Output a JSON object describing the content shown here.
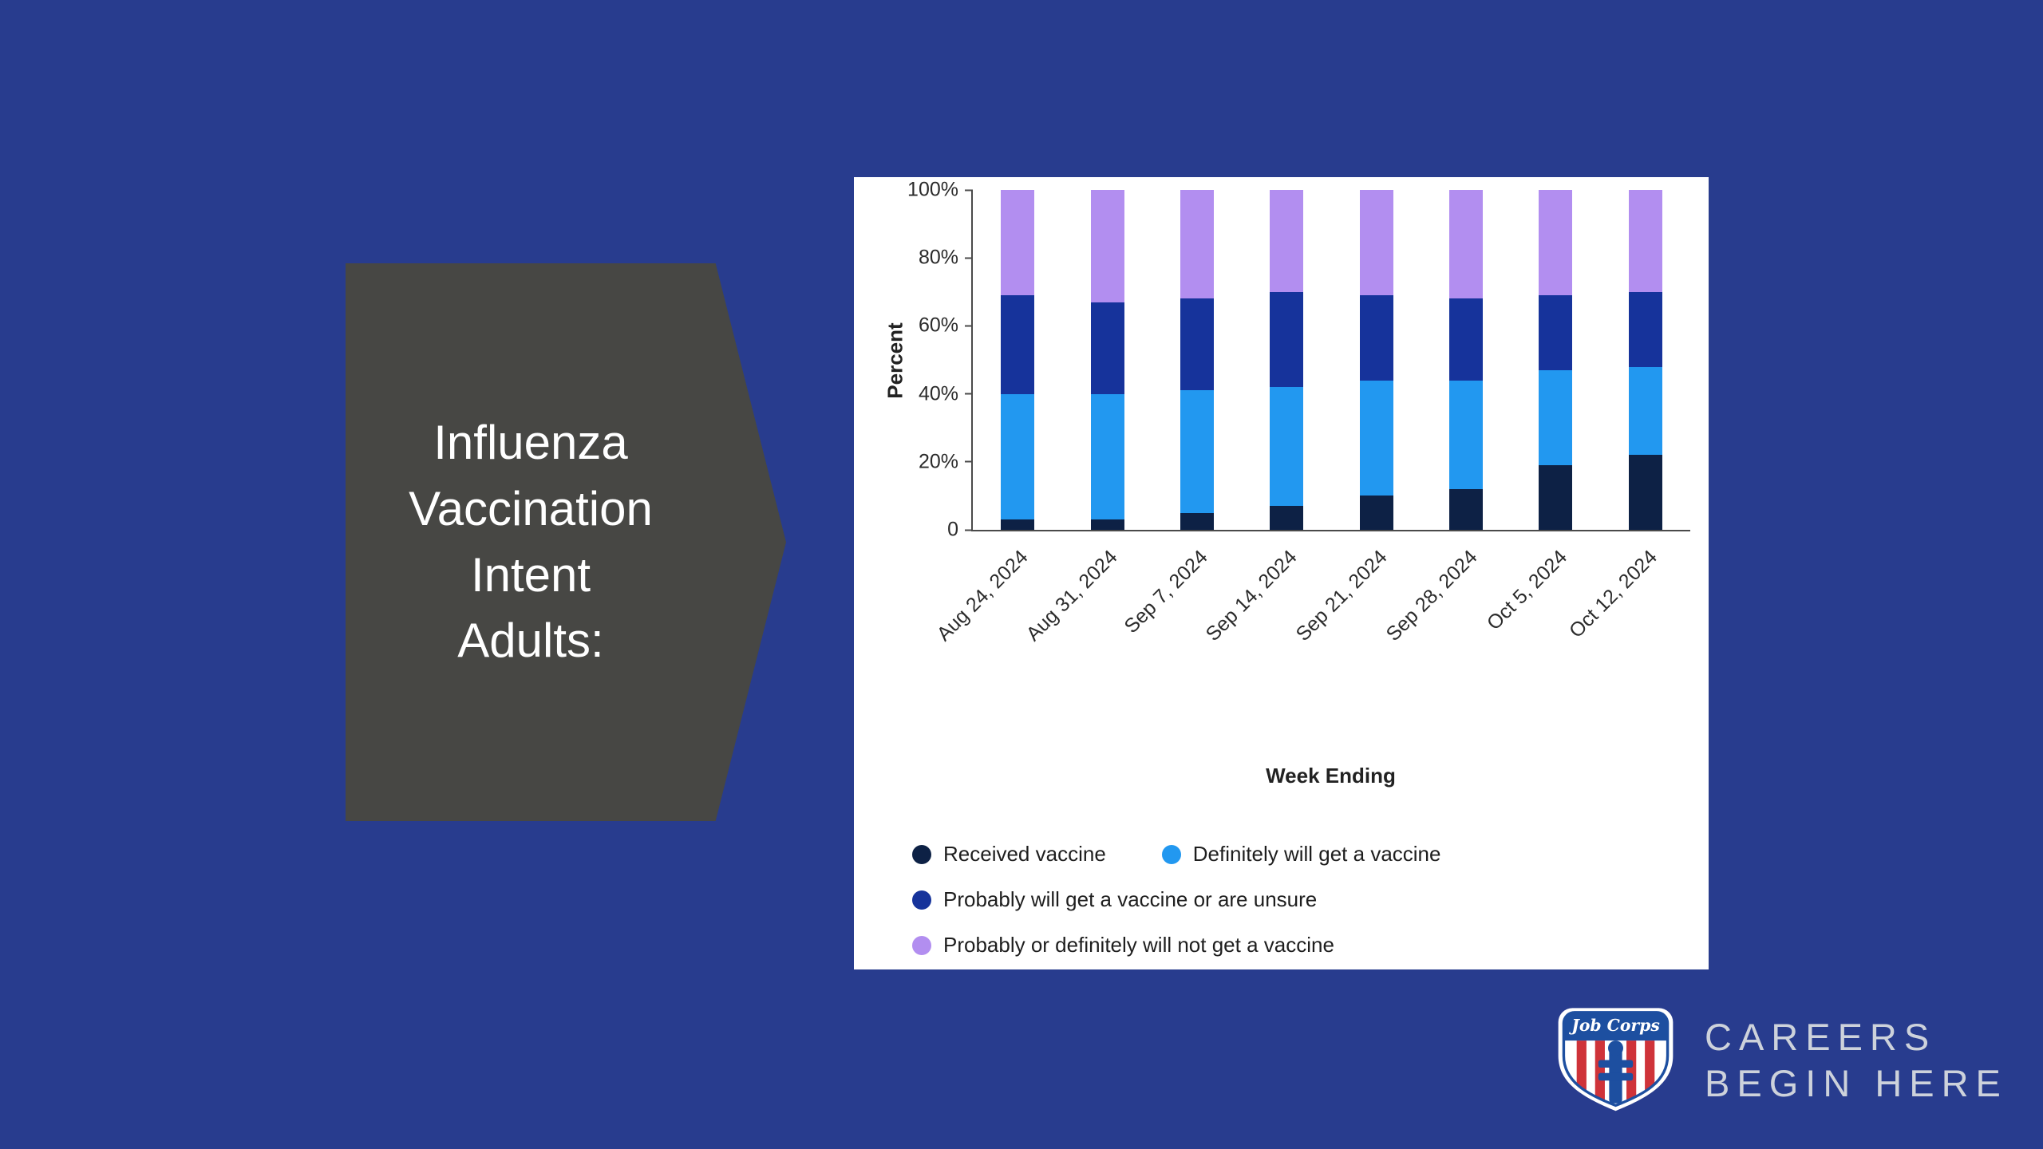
{
  "slide": {
    "title_lines": [
      "Influenza",
      "Vaccination",
      "Intent",
      "Adults:"
    ],
    "background_color": "#283c8e",
    "shape_color": "#474744",
    "panel_color": "#ffffff"
  },
  "chart_data": {
    "type": "bar",
    "stacked": true,
    "title": "",
    "xlabel": "Week Ending",
    "ylabel": "Percent",
    "ylim": [
      0,
      100
    ],
    "ytick_labels": [
      "0",
      "20%",
      "40%",
      "60%",
      "80%",
      "100%"
    ],
    "grid": false,
    "legend_position": "bottom",
    "categories": [
      "Aug 24, 2024",
      "Aug 31, 2024",
      "Sep 7, 2024",
      "Sep 14, 2024",
      "Sep 21, 2024",
      "Sep 28, 2024",
      "Oct 5, 2024",
      "Oct 12, 2024"
    ],
    "series": [
      {
        "name": "Received vaccine",
        "color": "#0d2145",
        "values": [
          3,
          3,
          5,
          7,
          10,
          12,
          19,
          22
        ]
      },
      {
        "name": "Definitely will get a vaccine",
        "color": "#2298f0",
        "values": [
          37,
          37,
          36,
          35,
          34,
          32,
          28,
          26
        ]
      },
      {
        "name": "Probably will get a vaccine or are unsure",
        "color": "#16339b",
        "values": [
          29,
          27,
          27,
          28,
          25,
          24,
          22,
          22
        ]
      },
      {
        "name": "Probably or definitely will not get a vaccine",
        "color": "#b28ef0",
        "values": [
          31,
          33,
          32,
          30,
          31,
          32,
          31,
          30
        ]
      }
    ],
    "legend_rows": [
      [
        0,
        1
      ],
      [
        2
      ],
      [
        3
      ]
    ]
  },
  "branding": {
    "logo_text": "Job Corps",
    "tagline_line1": "CAREERS",
    "tagline_line2": "BEGIN HERE",
    "logo_blue": "#1d4fa0",
    "logo_red": "#cf3339",
    "tagline_color": "#cdd2db"
  }
}
